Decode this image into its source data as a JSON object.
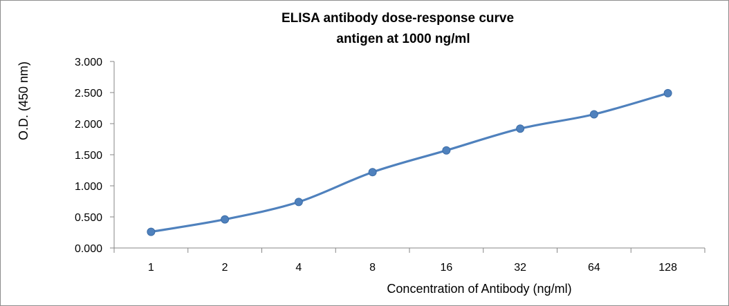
{
  "chart_data": {
    "type": "line",
    "title": "ELISA antibody dose-response curve",
    "subtitle": "antigen at 1000 ng/ml",
    "xlabel": "Concentration of Antibody (ng/ml)",
    "ylabel": "O.D. (450 nm)",
    "categories": [
      "1",
      "2",
      "4",
      "8",
      "16",
      "32",
      "64",
      "128"
    ],
    "values": [
      0.26,
      0.46,
      0.74,
      1.22,
      1.57,
      1.92,
      2.15,
      2.49
    ],
    "ylim": [
      0,
      3
    ],
    "yticks": [
      "0.000",
      "0.500",
      "1.000",
      "1.500",
      "2.000",
      "2.500",
      "3.000"
    ],
    "grid": false,
    "legend": "none",
    "line_color": "#4f81bd",
    "marker_color": "#4f81bd"
  }
}
